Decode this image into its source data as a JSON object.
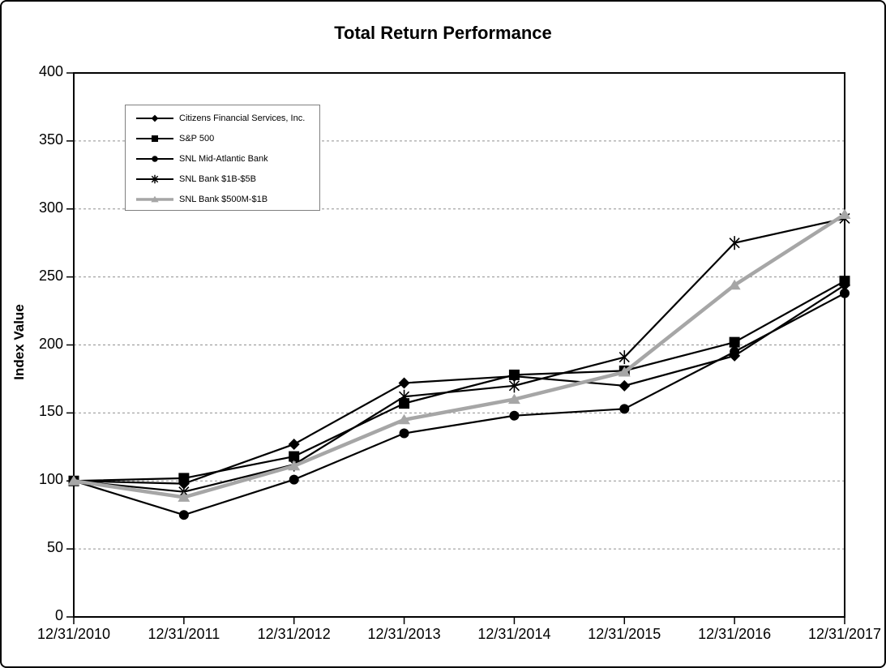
{
  "chart_data": {
    "type": "line",
    "title": "Total Return Performance",
    "ylabel": "Index Value",
    "xlabel": "",
    "ylim": [
      0,
      400
    ],
    "yticks": [
      0,
      50,
      100,
      150,
      200,
      250,
      300,
      350,
      400
    ],
    "grid": "horizontal dashed gridlines every 50",
    "legend_position": "inside plot, upper left, boxed",
    "categories": [
      "12/31/2010",
      "12/31/2011",
      "12/31/2012",
      "12/31/2013",
      "12/31/2014",
      "12/31/2015",
      "12/31/2016",
      "12/31/2017"
    ],
    "series": [
      {
        "name": "Citizens Financial Services, Inc.",
        "marker": "diamond",
        "color": "#000000",
        "line_width": 2.2,
        "values": [
          100,
          98,
          127,
          172,
          177,
          170,
          192,
          244
        ]
      },
      {
        "name": "S&P 500",
        "marker": "square",
        "color": "#000000",
        "line_width": 2.2,
        "values": [
          100,
          102,
          118,
          157,
          178,
          181,
          202,
          247
        ]
      },
      {
        "name": "SNL Mid-Atlantic Bank",
        "marker": "circle",
        "color": "#000000",
        "line_width": 2.2,
        "values": [
          100,
          75,
          101,
          135,
          148,
          153,
          195,
          238
        ]
      },
      {
        "name": "SNL Bank $1B-$5B",
        "marker": "asterisk",
        "color": "#000000",
        "line_width": 2.2,
        "values": [
          100,
          92,
          112,
          162,
          170,
          191,
          275,
          293
        ]
      },
      {
        "name": "SNL Bank $500M-$1B",
        "marker": "triangle",
        "color": "#a6a6a6",
        "line_width": 4.5,
        "values": [
          100,
          88,
          111,
          145,
          160,
          180,
          244,
          296
        ]
      }
    ]
  },
  "colors": {
    "background": "#ffffff",
    "axis": "#000000",
    "gridline": "#909090",
    "gray_series": "#a6a6a6",
    "legend_border": "#808080"
  }
}
